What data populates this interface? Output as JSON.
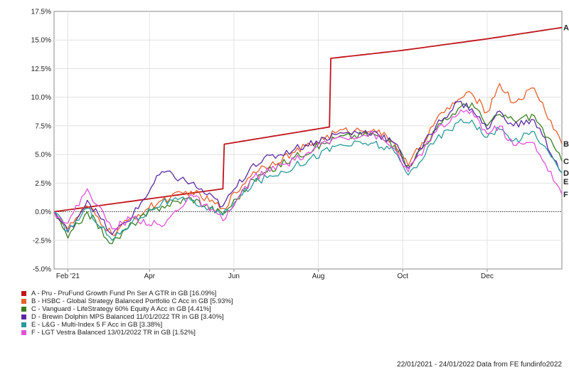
{
  "chart_data": {
    "type": "line",
    "x_ticks": [
      "Feb '21",
      "Apr",
      "Jun",
      "Aug",
      "Oct",
      "Dec"
    ],
    "x_range": [
      "2021-01-22",
      "2022-01-24"
    ],
    "y_ticks": [
      "17.5%",
      "15.0%",
      "12.5%",
      "10.0%",
      "7.5%",
      "5.0%",
      "2.5%",
      "0.0%",
      "-2.5%",
      "-5.0%"
    ],
    "ylim": [
      -5.0,
      17.5
    ],
    "grid": true,
    "legend_position": "bottom-left",
    "series": [
      {
        "name": "A - Pru - PruFund Growth Fund Pn Ser A GTR in GB [16.09%]",
        "end_label": "A",
        "color": "#c0141c",
        "points": [
          [
            "2021-01-22",
            0.0
          ],
          [
            "2021-05-24",
            2.0
          ],
          [
            "2021-05-25",
            5.9
          ],
          [
            "2021-08-09",
            7.4
          ],
          [
            "2021-08-10",
            13.4
          ],
          [
            "2021-10-01",
            14.1
          ],
          [
            "2021-12-01",
            15.1
          ],
          [
            "2022-01-24",
            16.09
          ]
        ]
      },
      {
        "name": "B - HSBC - Global Strategy Balanced Portfolio C Acc in GB [5.93%]",
        "end_label": "B",
        "color": "#e8602c",
        "points": [
          [
            "2021-01-22",
            0.0
          ],
          [
            "2021-02-01",
            -1.5
          ],
          [
            "2021-02-15",
            0.5
          ],
          [
            "2021-03-05",
            -2.0
          ],
          [
            "2021-03-20",
            -0.5
          ],
          [
            "2021-04-10",
            1.0
          ],
          [
            "2021-05-01",
            1.8
          ],
          [
            "2021-05-24",
            0.3
          ],
          [
            "2021-06-15",
            3.5
          ],
          [
            "2021-07-15",
            5.2
          ],
          [
            "2021-08-15",
            7.0
          ],
          [
            "2021-09-10",
            7.2
          ],
          [
            "2021-09-25",
            6.0
          ],
          [
            "2021-10-05",
            4.0
          ],
          [
            "2021-10-25",
            8.0
          ],
          [
            "2021-11-10",
            9.8
          ],
          [
            "2021-11-20",
            10.3
          ],
          [
            "2021-12-01",
            8.7
          ],
          [
            "2021-12-10",
            11.2
          ],
          [
            "2021-12-20",
            9.5
          ],
          [
            "2022-01-04",
            10.8
          ],
          [
            "2022-01-24",
            5.93
          ]
        ]
      },
      {
        "name": "C - Vanguard - LifeStrategy 60% Equity A Acc in GB [4.41%]",
        "end_label": "C",
        "color": "#3a7d22",
        "points": [
          [
            "2021-01-22",
            0.0
          ],
          [
            "2021-02-01",
            -2.3
          ],
          [
            "2021-02-15",
            0.0
          ],
          [
            "2021-03-05",
            -2.8
          ],
          [
            "2021-03-20",
            -1.0
          ],
          [
            "2021-04-10",
            0.5
          ],
          [
            "2021-05-01",
            1.2
          ],
          [
            "2021-05-24",
            -0.2
          ],
          [
            "2021-06-15",
            2.8
          ],
          [
            "2021-07-15",
            4.8
          ],
          [
            "2021-08-15",
            6.5
          ],
          [
            "2021-09-10",
            6.8
          ],
          [
            "2021-09-25",
            5.8
          ],
          [
            "2021-10-05",
            4.0
          ],
          [
            "2021-10-25",
            7.2
          ],
          [
            "2021-11-10",
            9.0
          ],
          [
            "2021-11-20",
            9.5
          ],
          [
            "2021-12-01",
            7.5
          ],
          [
            "2021-12-10",
            8.5
          ],
          [
            "2021-12-20",
            8.0
          ],
          [
            "2022-01-04",
            8.4
          ],
          [
            "2022-01-24",
            4.41
          ]
        ]
      },
      {
        "name": "D - Brewin Dolphin MPS Balanced 11/01/2022 TR in GB [3.40%]",
        "end_label": "D",
        "color": "#5a2aa0",
        "points": [
          [
            "2021-01-22",
            0.0
          ],
          [
            "2021-02-01",
            -1.8
          ],
          [
            "2021-02-15",
            1.0
          ],
          [
            "2021-03-05",
            -2.0
          ],
          [
            "2021-03-20",
            -0.3
          ],
          [
            "2021-04-10",
            3.5
          ],
          [
            "2021-05-01",
            2.5
          ],
          [
            "2021-05-24",
            0.5
          ],
          [
            "2021-06-15",
            4.2
          ],
          [
            "2021-07-15",
            5.5
          ],
          [
            "2021-08-15",
            6.8
          ],
          [
            "2021-09-10",
            7.0
          ],
          [
            "2021-09-25",
            6.0
          ],
          [
            "2021-10-05",
            3.8
          ],
          [
            "2021-10-25",
            7.5
          ],
          [
            "2021-11-10",
            9.6
          ],
          [
            "2021-11-20",
            9.0
          ],
          [
            "2021-12-01",
            7.2
          ],
          [
            "2021-12-10",
            8.8
          ],
          [
            "2021-12-20",
            7.5
          ],
          [
            "2022-01-04",
            8.0
          ],
          [
            "2022-01-24",
            3.4
          ]
        ]
      },
      {
        "name": "E - L&G - Multi-Index 5 F Acc in GB [3.38%]",
        "end_label": "E",
        "color": "#2a9a9a",
        "points": [
          [
            "2021-01-22",
            0.0
          ],
          [
            "2021-02-01",
            -1.7
          ],
          [
            "2021-02-15",
            0.3
          ],
          [
            "2021-03-05",
            -2.5
          ],
          [
            "2021-03-20",
            -0.8
          ],
          [
            "2021-04-10",
            0.8
          ],
          [
            "2021-05-01",
            1.0
          ],
          [
            "2021-05-24",
            -0.3
          ],
          [
            "2021-06-15",
            2.5
          ],
          [
            "2021-07-15",
            4.0
          ],
          [
            "2021-08-15",
            5.8
          ],
          [
            "2021-09-10",
            6.0
          ],
          [
            "2021-09-25",
            5.2
          ],
          [
            "2021-10-05",
            3.2
          ],
          [
            "2021-10-25",
            6.3
          ],
          [
            "2021-11-10",
            7.8
          ],
          [
            "2021-11-20",
            8.0
          ],
          [
            "2021-12-01",
            6.5
          ],
          [
            "2021-12-10",
            7.2
          ],
          [
            "2021-12-20",
            6.2
          ],
          [
            "2022-01-04",
            7.0
          ],
          [
            "2022-01-24",
            3.38
          ]
        ]
      },
      {
        "name": "F - LGT Vestra Balanced 13/01/2022 TR in GB [1.52%]",
        "end_label": "F",
        "color": "#e052d8",
        "points": [
          [
            "2021-01-22",
            0.0
          ],
          [
            "2021-02-01",
            -1.0
          ],
          [
            "2021-02-15",
            2.0
          ],
          [
            "2021-03-05",
            -1.5
          ],
          [
            "2021-03-20",
            -0.5
          ],
          [
            "2021-04-10",
            -1.3
          ],
          [
            "2021-05-01",
            1.5
          ],
          [
            "2021-05-24",
            -0.8
          ],
          [
            "2021-06-15",
            3.0
          ],
          [
            "2021-07-15",
            4.5
          ],
          [
            "2021-08-15",
            6.5
          ],
          [
            "2021-09-10",
            6.8
          ],
          [
            "2021-09-25",
            5.5
          ],
          [
            "2021-10-05",
            3.5
          ],
          [
            "2021-10-25",
            7.0
          ],
          [
            "2021-11-10",
            8.5
          ],
          [
            "2021-11-20",
            8.8
          ],
          [
            "2021-12-01",
            6.8
          ],
          [
            "2021-12-10",
            7.5
          ],
          [
            "2021-12-20",
            5.8
          ],
          [
            "2022-01-04",
            6.0
          ],
          [
            "2022-01-24",
            1.52
          ]
        ]
      }
    ]
  },
  "footer": "22/01/2021 - 24/01/2022 Data from FE fundinfo2022"
}
